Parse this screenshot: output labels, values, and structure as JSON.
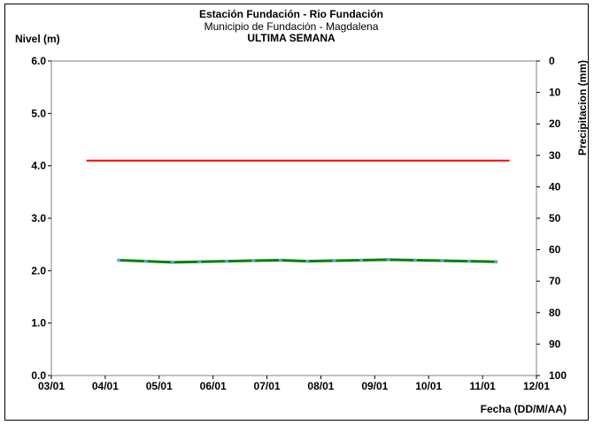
{
  "chart_data": {
    "type": "line",
    "title": "Estación Fundación - Rio Fundación",
    "subtitle": "Municipio de Fundación - Magdalena",
    "subtitle2": "ULTIMA SEMANA",
    "ylabel": "Nivel (m)",
    "y2label": "Precipitacion (mm)",
    "xlabel": "Fecha (DD/M/AA)",
    "ylim": [
      0,
      6
    ],
    "yticks": [
      "0.0",
      "1.0",
      "2.0",
      "3.0",
      "4.0",
      "5.0",
      "6.0"
    ],
    "y2lim": [
      0,
      100
    ],
    "y2ticks": [
      "0",
      "10",
      "20",
      "30",
      "40",
      "50",
      "60",
      "70",
      "80",
      "90",
      "100"
    ],
    "xlim": [
      0,
      9
    ],
    "xticks": [
      "03/01",
      "04/01",
      "05/01",
      "06/01",
      "07/01",
      "08/01",
      "09/01",
      "10/01",
      "11/01",
      "12/01"
    ],
    "grid": false,
    "series": [
      {
        "color": "#ff0000",
        "x": [
          0.65,
          8.5
        ],
        "y": [
          4.1,
          4.1
        ]
      },
      {
        "color": "#008000",
        "marker_color": "#5fa8d3",
        "x": [
          1.25,
          1.75,
          2.25,
          2.75,
          3.25,
          3.75,
          4.25,
          4.75,
          5.25,
          5.75,
          6.25,
          6.75,
          7.25,
          7.75,
          8.25
        ],
        "y": [
          2.2,
          2.18,
          2.16,
          2.17,
          2.18,
          2.19,
          2.2,
          2.18,
          2.19,
          2.2,
          2.21,
          2.2,
          2.19,
          2.18,
          2.17
        ]
      }
    ]
  }
}
